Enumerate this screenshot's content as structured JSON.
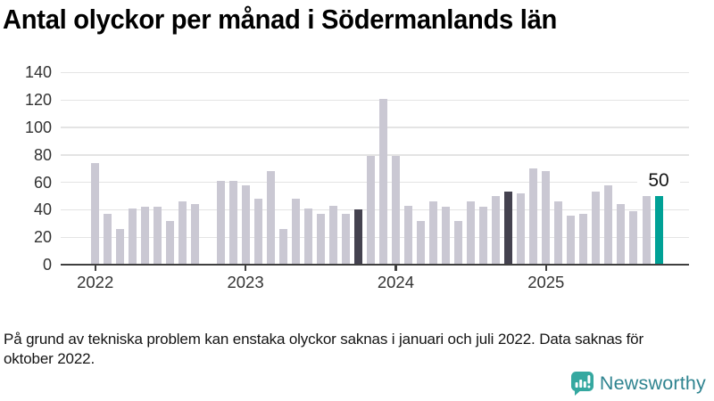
{
  "title": "Antal olyckor per månad i Södermanlands län",
  "footnote": {
    "lines": [
      "På grund av tekniska problem kan enstaka olyckor saknas i januari och juli 2022. Data saknas för",
      "oktober 2022."
    ]
  },
  "logo": {
    "text": "Newsworthy"
  },
  "colors": {
    "bar": "#cac8d3",
    "bar_dark": "#44424f",
    "bar_accent": "#00a196",
    "gridline": "#e4e4e4",
    "axis": "#3f3f3f",
    "tick_label": "#333333",
    "logo_icon": "#35a8a0",
    "logo_text": "#2f8490"
  },
  "chart_data": {
    "type": "bar",
    "title": "Antal olyckor per månad i Södermanlands län",
    "ylim": [
      0,
      140
    ],
    "yticks": [
      0,
      20,
      40,
      60,
      80,
      100,
      120,
      140
    ],
    "grid": "horizontal",
    "legend_position": "none",
    "year_ticks": [
      "2022",
      "2023",
      "2024",
      "2025"
    ],
    "missing_months": [
      "2022-10"
    ],
    "highlight_dark": [
      "2023-10",
      "2024-10"
    ],
    "highlight_accent": [
      "2025-10"
    ],
    "annotation": {
      "month": "2025-10",
      "label": "50"
    },
    "series": [
      {
        "m": "2022-01",
        "v": 74
      },
      {
        "m": "2022-02",
        "v": 37
      },
      {
        "m": "2022-03",
        "v": 26
      },
      {
        "m": "2022-04",
        "v": 41
      },
      {
        "m": "2022-05",
        "v": 42
      },
      {
        "m": "2022-06",
        "v": 42
      },
      {
        "m": "2022-07",
        "v": 32
      },
      {
        "m": "2022-08",
        "v": 46
      },
      {
        "m": "2022-09",
        "v": 44
      },
      {
        "m": "2022-10",
        "v": null
      },
      {
        "m": "2022-11",
        "v": 61
      },
      {
        "m": "2022-12",
        "v": 61
      },
      {
        "m": "2023-01",
        "v": 58
      },
      {
        "m": "2023-02",
        "v": 48
      },
      {
        "m": "2023-03",
        "v": 68
      },
      {
        "m": "2023-04",
        "v": 26
      },
      {
        "m": "2023-05",
        "v": 48
      },
      {
        "m": "2023-06",
        "v": 41
      },
      {
        "m": "2023-07",
        "v": 37
      },
      {
        "m": "2023-08",
        "v": 43
      },
      {
        "m": "2023-09",
        "v": 37
      },
      {
        "m": "2023-10",
        "v": 40
      },
      {
        "m": "2023-11",
        "v": 79
      },
      {
        "m": "2023-12",
        "v": 121
      },
      {
        "m": "2024-01",
        "v": 79
      },
      {
        "m": "2024-02",
        "v": 43
      },
      {
        "m": "2024-03",
        "v": 32
      },
      {
        "m": "2024-04",
        "v": 46
      },
      {
        "m": "2024-05",
        "v": 42
      },
      {
        "m": "2024-06",
        "v": 32
      },
      {
        "m": "2024-07",
        "v": 46
      },
      {
        "m": "2024-08",
        "v": 42
      },
      {
        "m": "2024-09",
        "v": 50
      },
      {
        "m": "2024-10",
        "v": 53
      },
      {
        "m": "2024-11",
        "v": 52
      },
      {
        "m": "2024-12",
        "v": 70
      },
      {
        "m": "2025-01",
        "v": 68
      },
      {
        "m": "2025-02",
        "v": 46
      },
      {
        "m": "2025-03",
        "v": 36
      },
      {
        "m": "2025-04",
        "v": 37
      },
      {
        "m": "2025-05",
        "v": 53
      },
      {
        "m": "2025-06",
        "v": 58
      },
      {
        "m": "2025-07",
        "v": 44
      },
      {
        "m": "2025-08",
        "v": 39
      },
      {
        "m": "2025-09",
        "v": 50
      },
      {
        "m": "2025-10",
        "v": 50
      }
    ]
  }
}
